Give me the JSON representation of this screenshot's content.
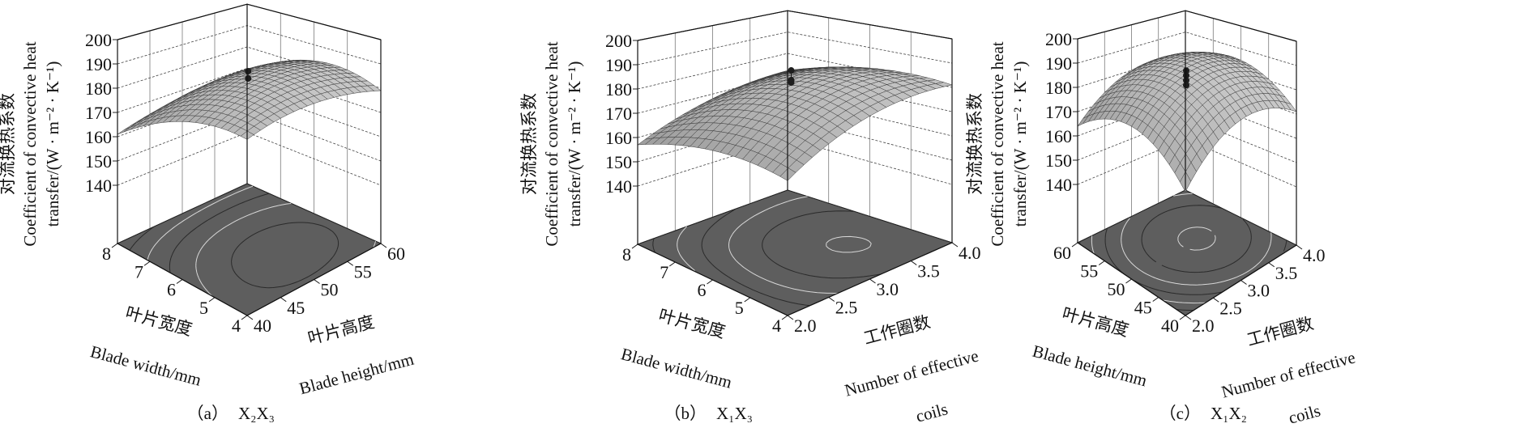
{
  "chart_data": [
    {
      "type": "surface3d",
      "caption_label": "（a）",
      "caption_vars": "X₂X₃",
      "zlabel": [
        "对流换热系数",
        "Coefficient of convective heat",
        "transfer/(W · m⁻² · K⁻¹)"
      ],
      "zlim": [
        140,
        200
      ],
      "zticks": [
        "140",
        "150",
        "160",
        "170",
        "180",
        "190",
        "200"
      ],
      "x_axis": {
        "label_cn": "叶片宽度",
        "label_en": "Blade width/mm",
        "range": [
          4,
          8
        ],
        "ticks": [
          "4",
          "5",
          "6",
          "7",
          "8"
        ]
      },
      "y_axis": {
        "label_cn": "叶片高度",
        "label_en": "Blade height/mm",
        "range": [
          40,
          60
        ],
        "ticks": [
          "40",
          "45",
          "50",
          "55",
          "60"
        ]
      },
      "surface_grid_3x3": [
        [
          180,
          184,
          179
        ],
        [
          177,
          186,
          183
        ],
        [
          161,
          167,
          168
        ]
      ],
      "design_points": [
        188,
        185
      ],
      "contour_floor": true
    },
    {
      "type": "surface3d",
      "caption_label": "（b）",
      "caption_vars": "X₁X₃",
      "zlabel": [
        "对流换热系数",
        "Coefficient of convective heat",
        "transfer/(W · m⁻² · K⁻¹)"
      ],
      "zlim": [
        140,
        200
      ],
      "zticks": [
        "140",
        "150",
        "160",
        "170",
        "180",
        "190",
        "200"
      ],
      "x_axis": {
        "label_cn": "叶片宽度",
        "label_en": "Blade width/mm",
        "range": [
          4,
          8
        ],
        "ticks": [
          "4",
          "5",
          "6",
          "7",
          "8"
        ]
      },
      "y_axis": {
        "label_cn": "工作圈数",
        "label_en": "Number of effective",
        "label_en2": "coils",
        "range": [
          2.0,
          4.0
        ],
        "ticks": [
          "2.0",
          "2.5",
          "3.0",
          "3.5",
          "4.0"
        ]
      },
      "surface_grid_3x3": [
        [
          165,
          179,
          181
        ],
        [
          166,
          183,
          181
        ],
        [
          157,
          168,
          172
        ]
      ],
      "design_points": [
        189,
        185,
        184
      ],
      "contour_floor": true
    },
    {
      "type": "surface3d",
      "caption_label": "（c）",
      "caption_vars": "X₁X₂",
      "zlabel": [
        "对流换热系数",
        "Coefficient of convective heat",
        "transfer/(W · m⁻² · K⁻¹)"
      ],
      "zlim": [
        140,
        200
      ],
      "zticks": [
        "140",
        "150",
        "160",
        "170",
        "180",
        "190",
        "200"
      ],
      "x_axis": {
        "label_cn": "叶片高度",
        "label_en": "Blade height/mm",
        "range": [
          40,
          60
        ],
        "ticks": [
          "40",
          "45",
          "50",
          "55",
          "60"
        ]
      },
      "y_axis": {
        "label_cn": "工作圈数",
        "label_en": "Number of effective",
        "label_en2": "coils",
        "range": [
          2.0,
          4.0
        ],
        "ticks": [
          "2.0",
          "2.5",
          "3.0",
          "3.5",
          "4.0"
        ]
      },
      "surface_grid_3x3": [
        [
          161,
          178,
          171
        ],
        [
          175,
          190,
          185
        ],
        [
          164,
          180,
          178
        ]
      ],
      "design_points": [
        189,
        187,
        185,
        183
      ],
      "contour_floor": true
    }
  ]
}
